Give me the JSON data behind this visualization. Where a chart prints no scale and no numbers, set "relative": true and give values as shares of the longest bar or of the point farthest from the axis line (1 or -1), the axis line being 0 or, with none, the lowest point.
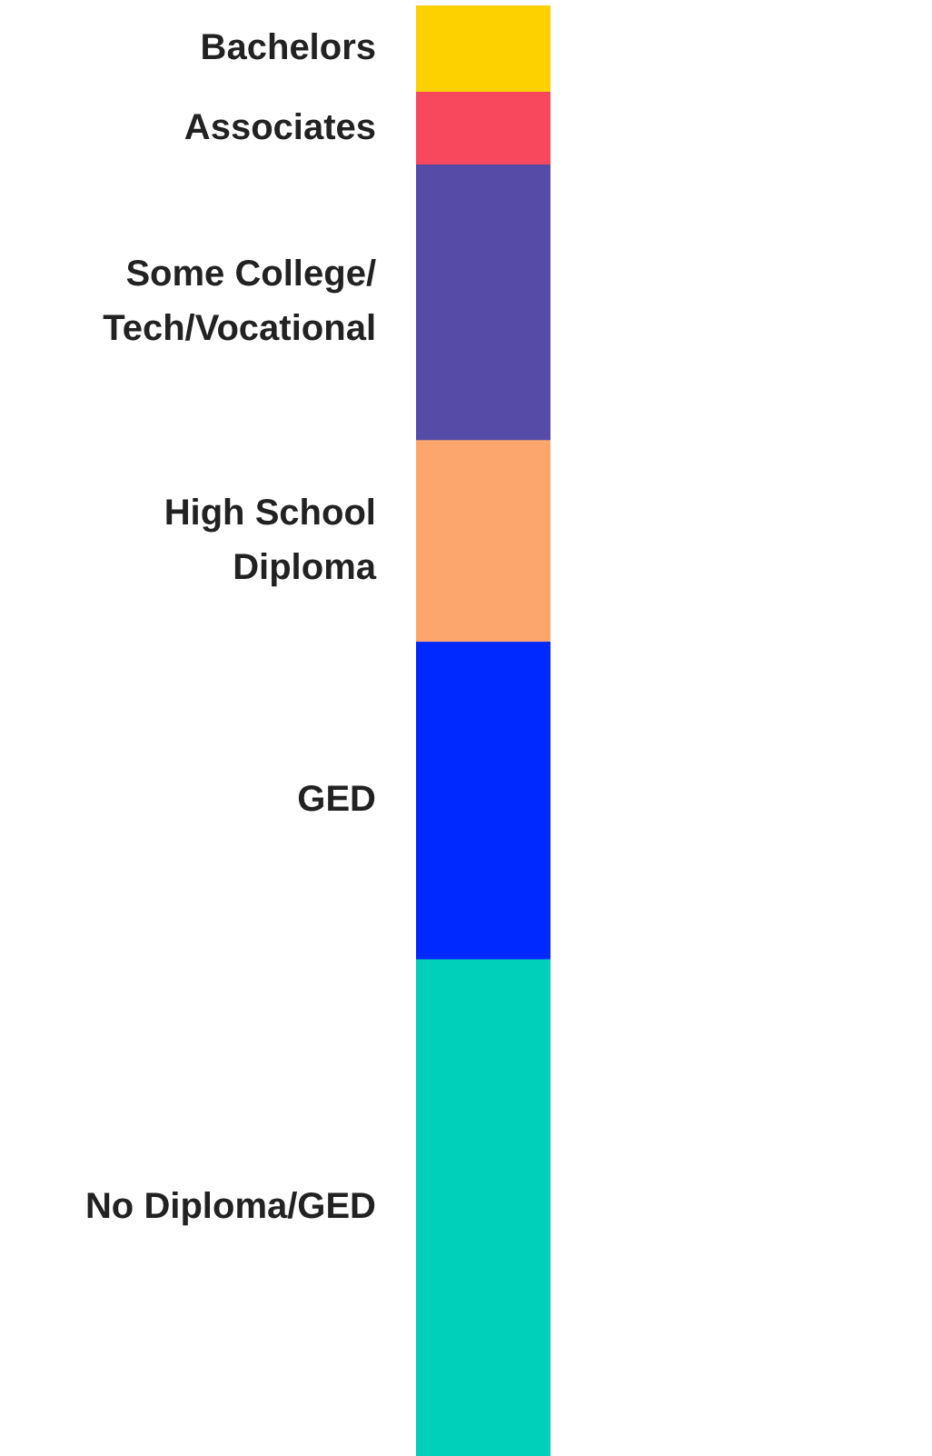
{
  "chart_data": {
    "type": "bar",
    "stacked": true,
    "relative": true,
    "legend": false,
    "categories": [
      null
    ],
    "series": [
      {
        "name": "No Diploma/GED",
        "color": "#00cfb9",
        "values": [
          0.342
        ]
      },
      {
        "name": "GED",
        "color": "#0029ff",
        "values": [
          0.219
        ]
      },
      {
        "name": "High School Diploma",
        "color": "#fca66d",
        "values": [
          0.139
        ]
      },
      {
        "name": "Some College/Tech/Vocational",
        "color": "#574ba8",
        "values": [
          0.19
        ]
      },
      {
        "name": "Associates",
        "color": "#f8485e",
        "values": [
          0.05
        ]
      },
      {
        "name": "Bachelors",
        "color": "#fdd000",
        "values": [
          0.06
        ]
      }
    ]
  }
}
